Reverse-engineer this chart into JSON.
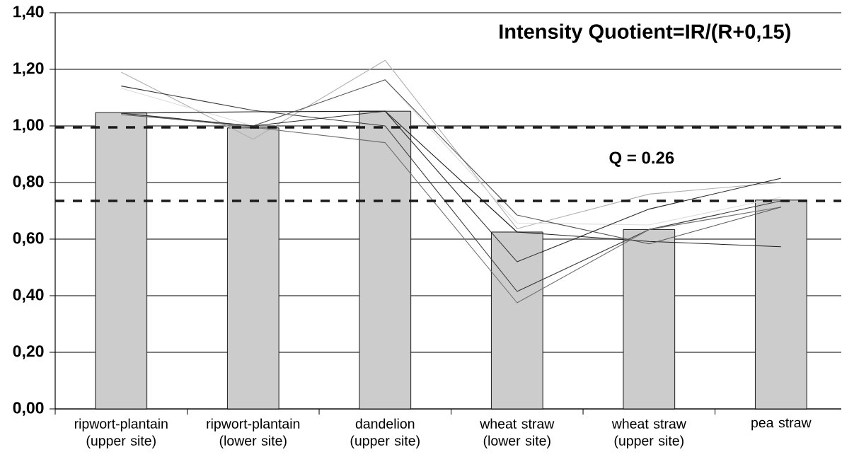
{
  "chart_data": {
    "type": "bar",
    "categories": [
      "ripwort-plantain (upper site)",
      "ripwort-plantain (lower site)",
      "dandelion (upper site)",
      "wheat straw (lower site)",
      "wheat straw (upper site)",
      "pea straw"
    ],
    "series": [
      {
        "color": "#cccccc",
        "values": [
          1.047,
          0.993,
          1.052,
          0.625,
          0.634,
          0.738
        ]
      },
      {
        "type": "line",
        "color": "#b0b0b0",
        "values": [
          1.19,
          0.953,
          1.232,
          0.637,
          0.759,
          0.8
        ]
      },
      {
        "type": "line",
        "color": "#3a3a3a",
        "values": [
          1.141,
          1.055,
          1.0,
          0.415,
          0.634,
          0.735
        ]
      },
      {
        "type": "line",
        "color": "#dcdcdc",
        "values": [
          1.133,
          1.0,
          1.163,
          0.657,
          0.65,
          0.748
        ]
      },
      {
        "type": "line",
        "color": "#202020",
        "values": [
          1.045,
          1.05,
          1.052,
          0.625,
          0.592,
          0.573
        ]
      },
      {
        "type": "line",
        "color": "#707070",
        "values": [
          1.045,
          0.995,
          0.941,
          0.375,
          0.634,
          0.713
        ]
      },
      {
        "type": "line",
        "color": "#555555",
        "values": [
          1.04,
          1.0,
          1.163,
          0.685,
          0.583,
          0.713
        ]
      },
      {
        "type": "line",
        "color": "#2c2c2c",
        "values": [
          1.045,
          1.0,
          1.052,
          0.52,
          0.706,
          0.815
        ]
      }
    ],
    "ylim": [
      0,
      1.4
    ],
    "yticks": [
      {
        "value": 0,
        "label": "0,00"
      },
      {
        "value": 0.2,
        "label": "0,20"
      },
      {
        "value": 0.4,
        "label": "0,40"
      },
      {
        "value": 0.6,
        "label": "0,60"
      },
      {
        "value": 0.8,
        "label": "0,80"
      },
      {
        "value": 1.0,
        "label": "1,00"
      },
      {
        "value": 1.2,
        "label": "1,20"
      },
      {
        "value": 1.4,
        "label": "1,40"
      }
    ],
    "grid": "y",
    "marker": "none",
    "ref_lines": [
      {
        "axis": "y",
        "value": 0.995,
        "color": "#1a1a1a",
        "line_style": "dashed"
      },
      {
        "axis": "y",
        "value": 0.735,
        "color": "#1a1a1a",
        "line_style": "dashed"
      }
    ],
    "annotations": [
      "Intensity Quotient=IR/(R+0,15)",
      "Q = 0.26"
    ]
  }
}
